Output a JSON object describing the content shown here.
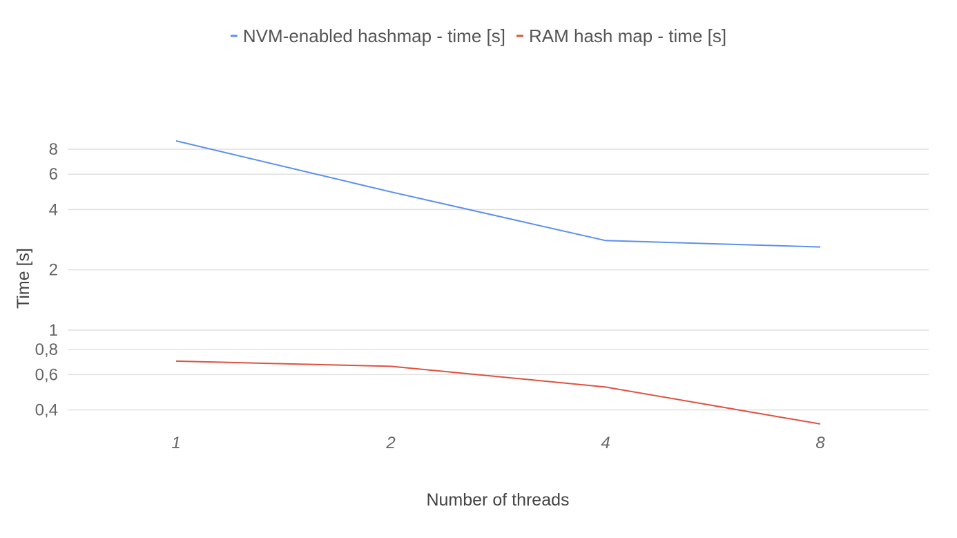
{
  "chart_data": {
    "type": "line",
    "xlabel": "Number of threads",
    "ylabel": "Time [s]",
    "y_scale": "log",
    "ylim": [
      0.35,
      9.5
    ],
    "y_ticks": [
      0.4,
      0.6,
      0.8,
      1,
      2,
      4,
      6,
      8
    ],
    "y_tick_labels": [
      "0,4",
      "0,6",
      "0,8",
      "1",
      "2",
      "4",
      "6",
      "8"
    ],
    "categories": [
      "1",
      "2",
      "4",
      "8"
    ],
    "legend_position": "top",
    "grid": true,
    "series": [
      {
        "name": "NVM-enabled hashmap - time [s]",
        "color": "#5b8ff0",
        "values": [
          8.8,
          4.9,
          2.8,
          2.6
        ]
      },
      {
        "name": "RAM hash map - time [s]",
        "color": "#e0503e",
        "values": [
          0.7,
          0.66,
          0.52,
          0.34
        ]
      }
    ]
  }
}
